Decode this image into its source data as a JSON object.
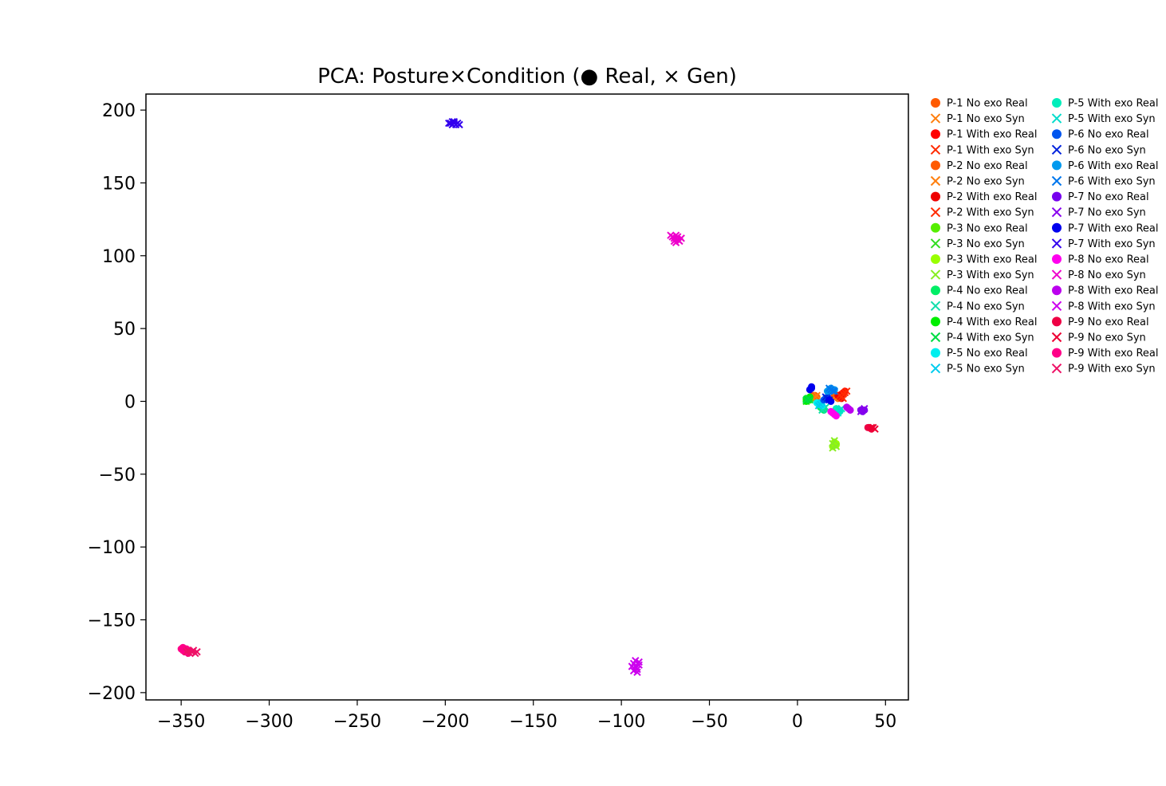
{
  "chart_data": {
    "type": "scatter",
    "title": "PCA: Posture×Condition (● Real, × Gen)",
    "xlabel": "",
    "ylabel": "",
    "xlim": [
      -370,
      63
    ],
    "ylim": [
      -205,
      211
    ],
    "xticks": [
      -350,
      -300,
      -250,
      -200,
      -150,
      -100,
      -50,
      0,
      50
    ],
    "xtick_labels": [
      "−350",
      "−300",
      "−250",
      "−200",
      "−150",
      "−100",
      "−50",
      "0",
      "50"
    ],
    "yticks": [
      200,
      150,
      100,
      50,
      0,
      -50,
      -100,
      -150,
      -200
    ],
    "ytick_labels": [
      "200",
      "150",
      "100",
      "50",
      "0",
      "−50",
      "−100",
      "−150",
      "−200"
    ],
    "grid": false,
    "legend_position": "outside-right",
    "legend_columns": 2,
    "series": [
      {
        "name": "P-1 No exo Real",
        "marker": "circle",
        "color": "#ff5a00",
        "points": [
          [
            9,
            3
          ],
          [
            10,
            4
          ],
          [
            8,
            2
          ],
          [
            11,
            3
          ],
          [
            9,
            4
          ]
        ]
      },
      {
        "name": "P-1 No exo Syn",
        "marker": "x",
        "color": "#ff7f0e",
        "points": [
          [
            10,
            3
          ],
          [
            9,
            2
          ],
          [
            11,
            4
          ]
        ]
      },
      {
        "name": "P-1 With exo Real",
        "marker": "circle",
        "color": "#ff0000",
        "points": [
          [
            26,
            6
          ],
          [
            27,
            7
          ],
          [
            25,
            5
          ]
        ]
      },
      {
        "name": "P-1 With exo Syn",
        "marker": "x",
        "color": "#ff2a00",
        "points": [
          [
            27,
            6
          ],
          [
            28,
            7
          ],
          [
            26,
            5
          ]
        ]
      },
      {
        "name": "P-2 No exo Real",
        "marker": "circle",
        "color": "#ff5a00",
        "points": [
          [
            22,
            3
          ],
          [
            23,
            2
          ],
          [
            21,
            4
          ]
        ]
      },
      {
        "name": "P-2 No exo Syn",
        "marker": "x",
        "color": "#ff7f0e",
        "points": [
          [
            23,
            3
          ],
          [
            24,
            2
          ],
          [
            22,
            4
          ]
        ]
      },
      {
        "name": "P-2 With exo Real",
        "marker": "circle",
        "color": "#ee0000",
        "points": [
          [
            24,
            3
          ],
          [
            25,
            2
          ],
          [
            23,
            4
          ]
        ]
      },
      {
        "name": "P-2 With exo Syn",
        "marker": "x",
        "color": "#ff2a00",
        "points": [
          [
            25,
            3
          ],
          [
            24,
            4
          ],
          [
            26,
            2
          ]
        ]
      },
      {
        "name": "P-3 No exo Real",
        "marker": "circle",
        "color": "#55ee00",
        "points": [
          [
            5,
            1
          ],
          [
            6,
            2
          ],
          [
            7,
            1
          ]
        ]
      },
      {
        "name": "P-3 No exo Syn",
        "marker": "x",
        "color": "#33dd22",
        "points": [
          [
            6,
            1
          ],
          [
            7,
            2
          ],
          [
            5,
            0
          ]
        ]
      },
      {
        "name": "P-3 With exo Real",
        "marker": "circle",
        "color": "#99ff00",
        "points": [
          [
            21,
            -29
          ],
          [
            22,
            -30
          ],
          [
            20,
            -31
          ],
          [
            21,
            -28
          ],
          [
            22,
            -29
          ]
        ]
      },
      {
        "name": "P-3 With exo Syn",
        "marker": "x",
        "color": "#88ee22",
        "points": [
          [
            20,
            -29
          ],
          [
            22,
            -31
          ],
          [
            21,
            -27
          ],
          [
            20,
            -32
          ]
        ]
      },
      {
        "name": "P-4 No exo Real",
        "marker": "circle",
        "color": "#00ee66",
        "points": [
          [
            14,
            -5
          ],
          [
            15,
            -6
          ],
          [
            13,
            -4
          ]
        ]
      },
      {
        "name": "P-4 No exo Syn",
        "marker": "x",
        "color": "#11ddaa",
        "points": [
          [
            15,
            -5
          ],
          [
            14,
            -6
          ],
          [
            16,
            -4
          ]
        ]
      },
      {
        "name": "P-4 With exo Real",
        "marker": "circle",
        "color": "#00ee00",
        "points": [
          [
            5,
            2
          ],
          [
            6,
            1
          ],
          [
            7,
            3
          ],
          [
            5,
            0
          ]
        ]
      },
      {
        "name": "P-4 With exo Syn",
        "marker": "x",
        "color": "#00dd44",
        "points": [
          [
            6,
            2
          ],
          [
            7,
            1
          ],
          [
            5,
            1
          ]
        ]
      },
      {
        "name": "P-5 No exo Real",
        "marker": "circle",
        "color": "#00eeee",
        "points": [
          [
            12,
            -2
          ],
          [
            13,
            -1
          ],
          [
            14,
            -3
          ],
          [
            11,
            -1
          ]
        ]
      },
      {
        "name": "P-5 No exo Syn",
        "marker": "x",
        "color": "#00ccee",
        "points": [
          [
            13,
            -2
          ],
          [
            12,
            -3
          ],
          [
            14,
            -1
          ]
        ]
      },
      {
        "name": "P-5 With exo Real",
        "marker": "circle",
        "color": "#00eebb",
        "points": [
          [
            23,
            -6
          ],
          [
            24,
            -7
          ],
          [
            22,
            -5
          ]
        ]
      },
      {
        "name": "P-5 With exo Syn",
        "marker": "x",
        "color": "#00ddcc",
        "points": [
          [
            24,
            -6
          ],
          [
            23,
            -8
          ],
          [
            25,
            -5
          ]
        ]
      },
      {
        "name": "P-6 No exo Real",
        "marker": "circle",
        "color": "#0055ee",
        "points": [
          [
            16,
            2
          ],
          [
            17,
            3
          ],
          [
            15,
            1
          ]
        ]
      },
      {
        "name": "P-6 No exo Syn",
        "marker": "x",
        "color": "#0022dd",
        "points": [
          [
            17,
            2
          ],
          [
            16,
            3
          ],
          [
            18,
            1
          ]
        ]
      },
      {
        "name": "P-6 With exo Real",
        "marker": "circle",
        "color": "#0099ee",
        "points": [
          [
            18,
            8
          ],
          [
            19,
            7
          ],
          [
            20,
            8
          ],
          [
            17,
            7
          ],
          [
            21,
            8
          ],
          [
            19,
            9
          ]
        ]
      },
      {
        "name": "P-6 With exo Syn",
        "marker": "x",
        "color": "#0077ee",
        "points": [
          [
            19,
            8
          ],
          [
            20,
            7
          ],
          [
            18,
            9
          ],
          [
            21,
            7
          ]
        ]
      },
      {
        "name": "P-7 No exo Real",
        "marker": "circle",
        "color": "#7700ee",
        "points": [
          [
            36,
            -6
          ],
          [
            37,
            -7
          ],
          [
            38,
            -6
          ]
        ]
      },
      {
        "name": "P-7 No exo Syn",
        "marker": "x",
        "color": "#8800ee",
        "points": [
          [
            37,
            -6
          ],
          [
            36,
            -7
          ],
          [
            38,
            -5
          ]
        ]
      },
      {
        "name": "P-7 With exo Real",
        "marker": "circle",
        "color": "#0000ee",
        "points": [
          [
            8,
            9
          ],
          [
            7,
            8
          ],
          [
            8,
            10
          ],
          [
            18,
            1
          ],
          [
            19,
            0
          ]
        ]
      },
      {
        "name": "P-7 With exo Syn",
        "marker": "x",
        "color": "#3300ee",
        "points": [
          [
            -197,
            191
          ],
          [
            -196,
            192
          ],
          [
            -195,
            191
          ],
          [
            -194,
            190
          ],
          [
            -196,
            190
          ],
          [
            -193,
            191
          ],
          [
            -192,
            190
          ],
          [
            -198,
            191
          ],
          [
            -195,
            192
          ]
        ]
      },
      {
        "name": "P-8 No exo Real",
        "marker": "circle",
        "color": "#ff00ee",
        "points": [
          [
            20,
            -8
          ],
          [
            21,
            -9
          ],
          [
            22,
            -10
          ],
          [
            19,
            -7
          ]
        ]
      },
      {
        "name": "P-8 No exo Syn",
        "marker": "x",
        "color": "#ee00cc",
        "points": [
          [
            -71,
            113
          ],
          [
            -70,
            112
          ],
          [
            -69,
            114
          ],
          [
            -68,
            111
          ],
          [
            -67,
            110
          ],
          [
            -70,
            110
          ],
          [
            -72,
            114
          ],
          [
            -69,
            109
          ],
          [
            -66,
            112
          ],
          [
            -68,
            113
          ]
        ]
      },
      {
        "name": "P-8 With exo Real",
        "marker": "circle",
        "color": "#bb00ee",
        "points": [
          [
            28,
            -4
          ],
          [
            29,
            -5
          ],
          [
            30,
            -6
          ]
        ]
      },
      {
        "name": "P-8 With exo Syn",
        "marker": "x",
        "color": "#cc00ee",
        "points": [
          [
            -93,
            -180
          ],
          [
            -92,
            -182
          ],
          [
            -91,
            -184
          ],
          [
            -93,
            -185
          ],
          [
            -90,
            -181
          ],
          [
            -92,
            -178
          ],
          [
            -91,
            -186
          ],
          [
            -94,
            -182
          ],
          [
            -90,
            -179
          ]
        ]
      },
      {
        "name": "P-9 No exo Real",
        "marker": "circle",
        "color": "#ee0044",
        "points": [
          [
            41,
            -18
          ],
          [
            42,
            -19
          ],
          [
            40,
            -18
          ]
        ]
      },
      {
        "name": "P-9 No exo Syn",
        "marker": "x",
        "color": "#ee0033",
        "points": [
          [
            43,
            -18
          ],
          [
            44,
            -19
          ],
          [
            42,
            -18
          ]
        ]
      },
      {
        "name": "P-9 With exo Real",
        "marker": "circle",
        "color": "#ff0088",
        "points": [
          [
            -350,
            -170
          ],
          [
            -349,
            -171
          ],
          [
            -348,
            -172
          ],
          [
            -347,
            -170
          ],
          [
            -346,
            -173
          ],
          [
            -349,
            -169
          ],
          [
            -345,
            -171
          ]
        ]
      },
      {
        "name": "P-9 With exo Syn",
        "marker": "x",
        "color": "#ee1166",
        "points": [
          [
            -346,
            -171
          ],
          [
            -344,
            -172
          ],
          [
            -342,
            -173
          ],
          [
            -343,
            -171
          ],
          [
            -341,
            -172
          ],
          [
            -345,
            -173
          ],
          [
            -347,
            -172
          ]
        ]
      }
    ]
  }
}
